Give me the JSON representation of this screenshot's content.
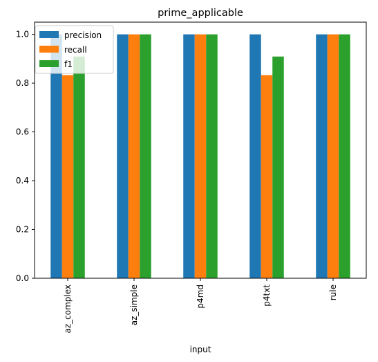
{
  "chart_data": {
    "type": "bar",
    "title": "prime_applicable",
    "xlabel": "input",
    "ylabel": "",
    "categories": [
      "az_complex",
      "az_simple",
      "p4md",
      "p4txt",
      "rule"
    ],
    "series": [
      {
        "name": "precision",
        "values": [
          1.0,
          1.0,
          1.0,
          1.0,
          1.0
        ],
        "color": "#1f77b4"
      },
      {
        "name": "recall",
        "values": [
          0.833,
          1.0,
          1.0,
          0.833,
          1.0
        ],
        "color": "#ff7f0e"
      },
      {
        "name": "f1",
        "values": [
          0.909,
          1.0,
          1.0,
          0.909,
          1.0
        ],
        "color": "#2ca02c"
      }
    ],
    "ylim": [
      0,
      1.05
    ],
    "yticks": [
      "0.0",
      "0.2",
      "0.4",
      "0.6",
      "0.8",
      "1.0"
    ],
    "grid": false,
    "legend_position": "upper-left",
    "x_tick_rotation": "vertical"
  }
}
